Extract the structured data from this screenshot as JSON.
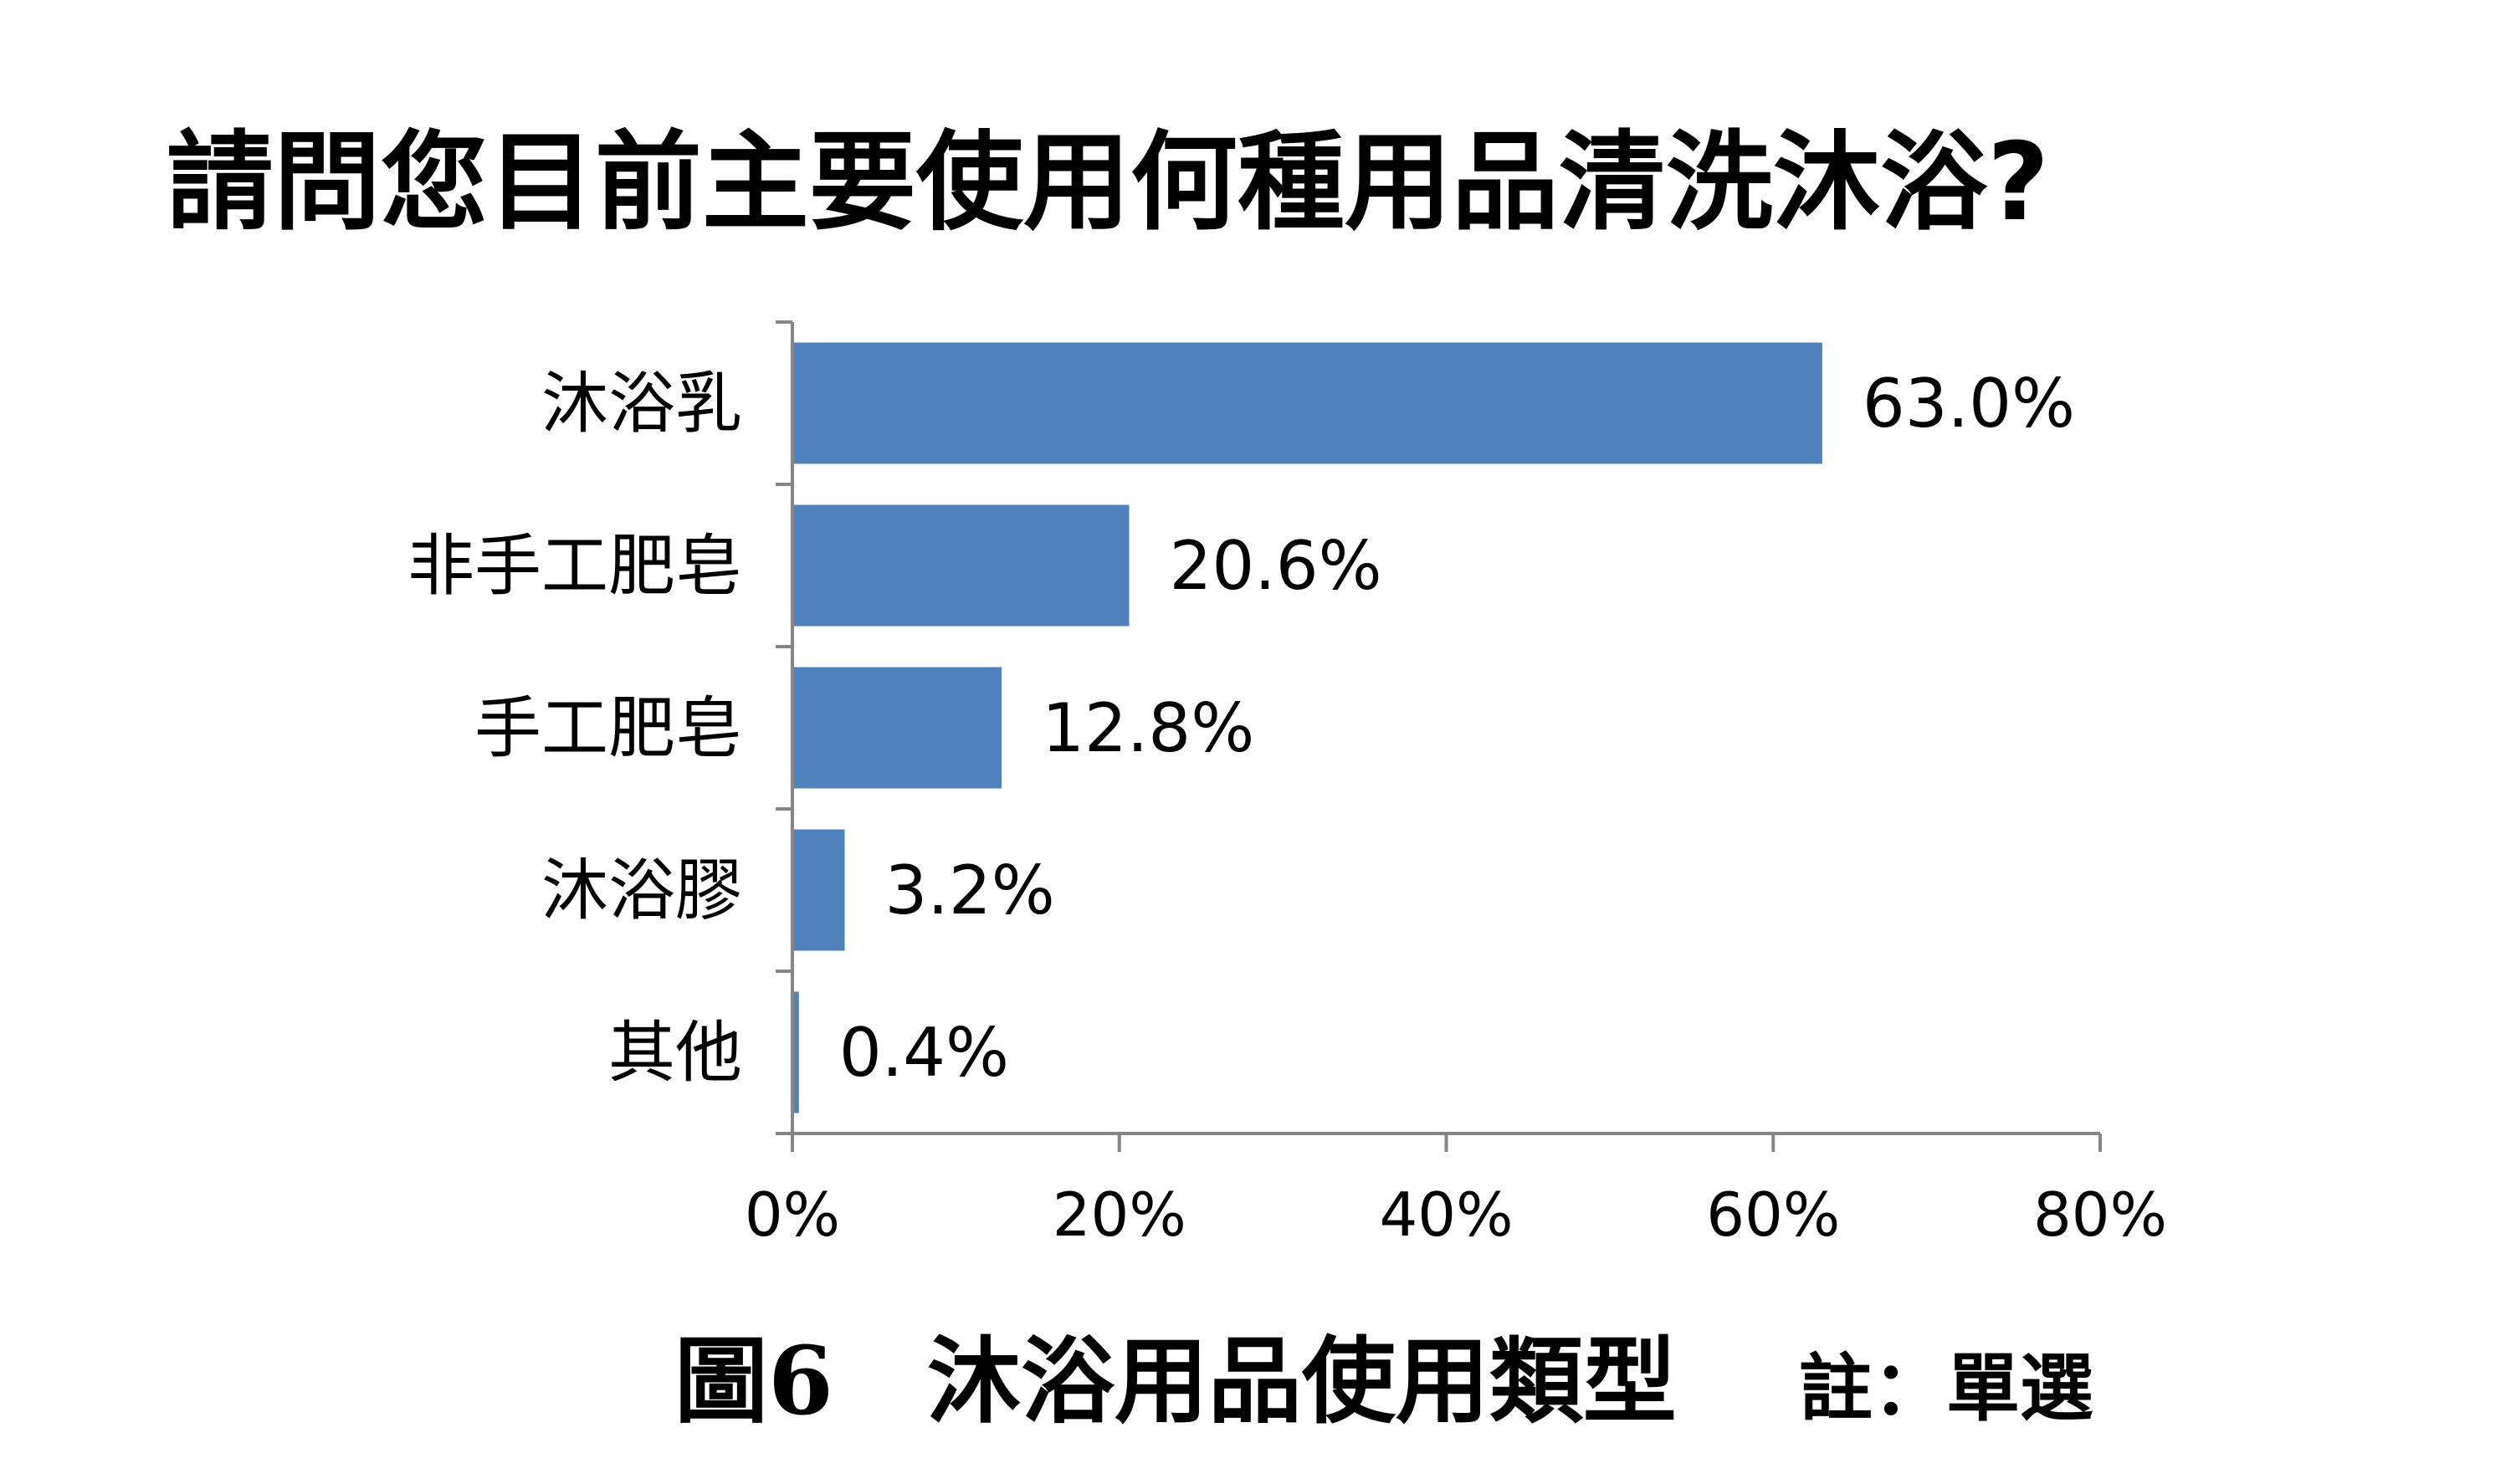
{
  "chart_data": {
    "type": "bar",
    "orientation": "horizontal",
    "title": "請問您目前主要使用何種用品清洗沐浴?",
    "categories": [
      "沐浴乳",
      "非手工肥皂",
      "手工肥皂",
      "沐浴膠",
      "其他"
    ],
    "values": [
      63.0,
      20.6,
      12.8,
      3.2,
      0.4
    ],
    "data_labels": [
      "63.0%",
      "20.6%",
      "12.8%",
      "3.2%",
      "0.4%"
    ],
    "xlim": [
      0,
      80
    ],
    "x_ticks": [
      0,
      20,
      40,
      60,
      80
    ],
    "x_tick_labels": [
      "0%",
      "20%",
      "40%",
      "60%",
      "80%"
    ],
    "grid": false,
    "legend": "none",
    "bar_color": "#4F81BD",
    "axis_color": "#868686"
  },
  "caption": {
    "figure": "圖6　沐浴用品使用類型",
    "note": "註：單選"
  }
}
